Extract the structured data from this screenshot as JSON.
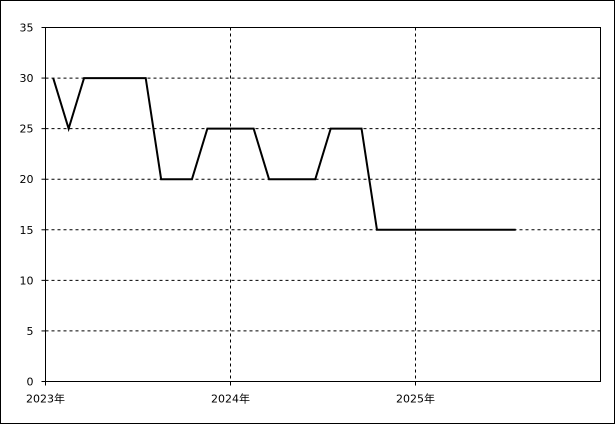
{
  "chart_data": {
    "type": "line",
    "categories": [
      "2023年",
      null,
      null,
      null,
      null,
      null,
      null,
      null,
      null,
      null,
      null,
      null,
      "2024年",
      null,
      null,
      null,
      null,
      null,
      null,
      null,
      null,
      null,
      null,
      null,
      "2025年",
      null,
      null,
      null,
      null,
      null,
      null,
      null,
      null,
      null,
      null,
      null
    ],
    "series": [
      {
        "color": "#000000",
        "values": [
          30,
          25,
          30,
          30,
          30,
          30,
          30,
          20,
          20,
          20,
          25,
          25,
          25,
          25,
          20,
          20,
          20,
          20,
          25,
          25,
          25,
          15,
          15,
          15,
          15,
          15,
          15,
          15,
          15,
          15,
          15,
          null,
          null,
          null,
          null,
          null
        ]
      }
    ],
    "ylim": [
      0,
      35
    ],
    "yticks": [
      0,
      5,
      10,
      15,
      20,
      25,
      30,
      35
    ],
    "grid": true
  }
}
